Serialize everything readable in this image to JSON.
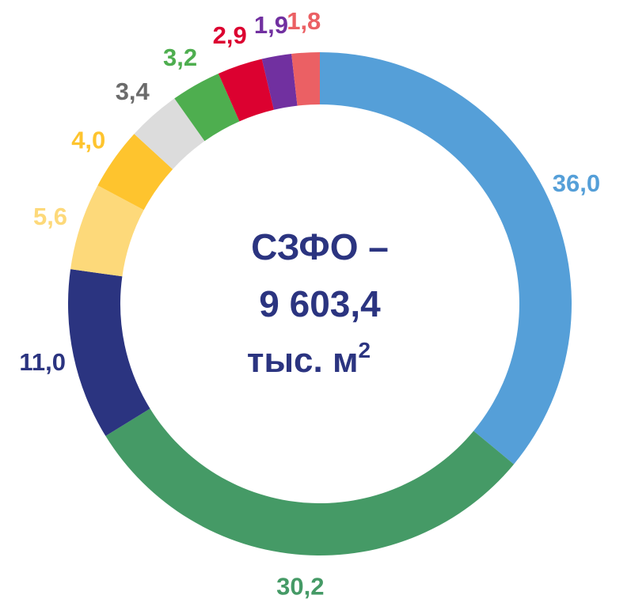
{
  "chart_data": {
    "type": "pie",
    "variant": "donut",
    "center_text": {
      "line1": "СЗФО –",
      "line2": "9 603,4",
      "line3": "тыс. м",
      "line3_sup": "2"
    },
    "slices": [
      {
        "label": "36,0",
        "value": 36.0,
        "color": "#559fd8"
      },
      {
        "label": "30,2",
        "value": 30.2,
        "color": "#459a66"
      },
      {
        "label": "11,0",
        "value": 11.0,
        "color": "#2b3480"
      },
      {
        "label": "5,6",
        "value": 5.6,
        "color": "#fdd97a"
      },
      {
        "label": "4,0",
        "value": 4.0,
        "color": "#fec42e"
      },
      {
        "label": "3,4",
        "value": 3.4,
        "color": "#dcdcdc"
      },
      {
        "label": "3,2",
        "value": 3.2,
        "color": "#4eae4f"
      },
      {
        "label": "2,9",
        "value": 2.9,
        "color": "#dc0130"
      },
      {
        "label": "1,9",
        "value": 1.9,
        "color": "#7130a0"
      },
      {
        "label": "1,8",
        "value": 1.8,
        "color": "#eb6064"
      }
    ],
    "label_colors": [
      "#559fd8",
      "#459a66",
      "#2b3480",
      "#fdd97a",
      "#fec42e",
      "#6b6b6b",
      "#4eae4f",
      "#dc0130",
      "#7130a0",
      "#eb6064"
    ],
    "start_angle_deg": 0,
    "direction": "clockwise"
  }
}
